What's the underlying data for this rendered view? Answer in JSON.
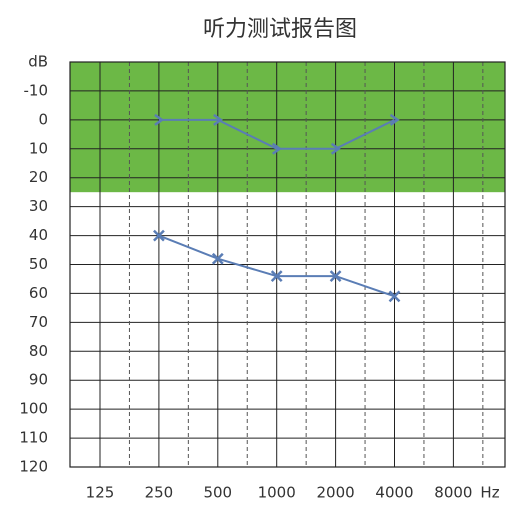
{
  "chart_data": {
    "type": "line",
    "title": "听力测试报告图",
    "y_unit": "dB",
    "x_unit": "Hz",
    "categories": [
      "125",
      "250",
      "500",
      "1000",
      "2000",
      "4000",
      "8000"
    ],
    "series": [
      {
        "color": "#5a7db5",
        "marker": "arrow",
        "values": [
          null,
          0,
          0,
          10,
          10,
          0,
          null
        ]
      },
      {
        "color": "#5a7db5",
        "marker": "x",
        "values": [
          null,
          40,
          48,
          54,
          54,
          61,
          null
        ]
      }
    ],
    "ylim": [
      -20,
      120
    ],
    "y_inverted": true,
    "yticks": [
      -10,
      0,
      10,
      20,
      30,
      40,
      50,
      60,
      70,
      80,
      90,
      100,
      110,
      120
    ],
    "shaded_range": {
      "from": -20,
      "to": 25,
      "color": "#6cb846"
    },
    "grid": true
  }
}
